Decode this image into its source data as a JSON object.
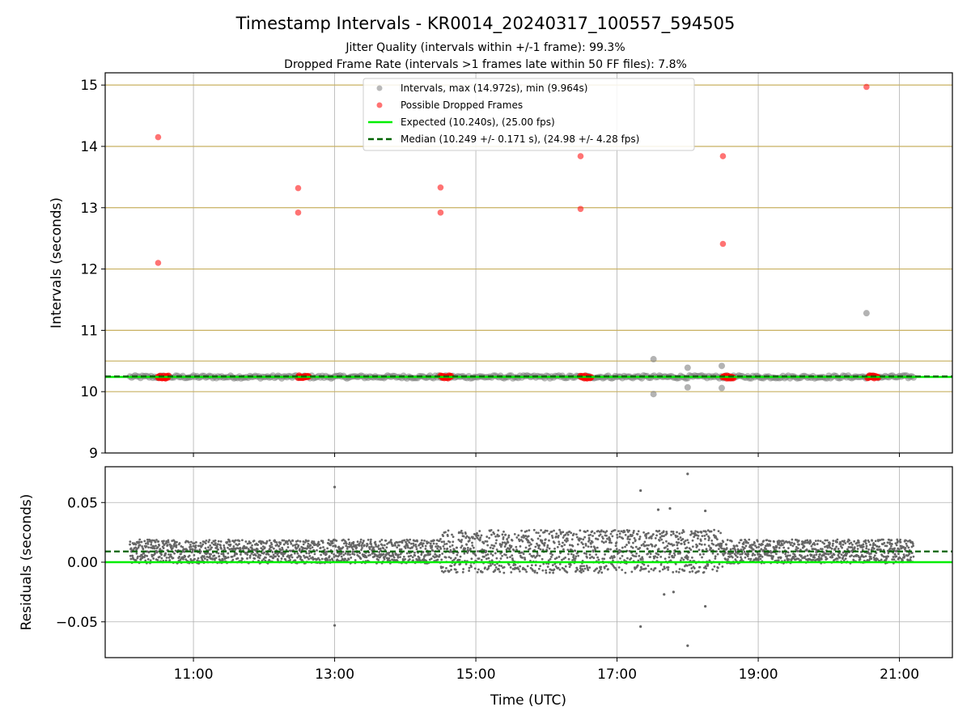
{
  "chart_data": [
    {
      "type": "scatter",
      "title": "Timestamp Intervals - KR0014_20240317_100557_594505",
      "subtitle_1": "Jitter Quality (intervals within +/-1 frame): 99.3%",
      "subtitle_2": "Dropped Frame Rate (intervals >1 frames late within 50 FF files): 7.8%",
      "xlabel": "",
      "ylabel": "Intervals (seconds)",
      "xlim": [
        "09:45",
        "21:45"
      ],
      "ylim": [
        9,
        15.2
      ],
      "yticks": [
        "9",
        "10",
        "11",
        "12",
        "13",
        "14",
        "15"
      ],
      "legend_position": "upper center",
      "grid": true,
      "horizontal_reference_lines": [
        10.0,
        10.5,
        11.0,
        12.0,
        13.0,
        14.0,
        15.0
      ],
      "legend": [
        {
          "label": "Intervals, max (14.972s), min (9.964s)",
          "marker": "circle",
          "color": "#808080"
        },
        {
          "label": "Possible Dropped Frames",
          "marker": "circle",
          "color": "#ff0000"
        },
        {
          "label": "Expected (10.240s), (25.00 fps)",
          "marker": "line",
          "color": "#00ee00"
        },
        {
          "label": "Median (10.249 +/- 0.171 s), (24.98 +/- 4.28 fps)",
          "marker": "dashed",
          "color": "#006400"
        }
      ],
      "series": [
        {
          "name": "Intervals, max (14.972s), min (9.964s)",
          "band": {
            "x_start": "10:06",
            "x_end": "21:12",
            "y": 10.24
          },
          "outliers": [
            {
              "x": "17:31",
              "y": 10.53
            },
            {
              "x": "17:31",
              "y": 9.96
            },
            {
              "x": "18:00",
              "y": 10.39
            },
            {
              "x": "18:00",
              "y": 10.07
            },
            {
              "x": "18:29",
              "y": 10.42
            },
            {
              "x": "18:29",
              "y": 10.06
            },
            {
              "x": "20:32",
              "y": 11.28
            }
          ]
        },
        {
          "name": "Possible Dropped Frames",
          "clusters": [
            {
              "x_start": "10:30",
              "x_end": "10:39",
              "y": 10.24
            },
            {
              "x_start": "12:29",
              "x_end": "12:38",
              "y": 10.24
            },
            {
              "x_start": "14:30",
              "x_end": "14:39",
              "y": 10.24
            },
            {
              "x_start": "16:29",
              "x_end": "16:38",
              "y": 10.24
            },
            {
              "x_start": "18:30",
              "x_end": "18:39",
              "y": 10.24
            },
            {
              "x_start": "20:33",
              "x_end": "20:42",
              "y": 10.24
            }
          ],
          "points": [
            {
              "x": "10:30",
              "y": 14.15
            },
            {
              "x": "10:30",
              "y": 12.1
            },
            {
              "x": "12:29",
              "y": 13.32
            },
            {
              "x": "12:29",
              "y": 12.92
            },
            {
              "x": "14:30",
              "y": 13.33
            },
            {
              "x": "14:30",
              "y": 12.92
            },
            {
              "x": "16:29",
              "y": 13.84
            },
            {
              "x": "16:29",
              "y": 12.98
            },
            {
              "x": "18:30",
              "y": 13.84
            },
            {
              "x": "18:30",
              "y": 12.41
            },
            {
              "x": "20:32",
              "y": 14.97
            }
          ]
        },
        {
          "name": "Expected (10.240s), (25.00 fps)",
          "y": 10.24
        },
        {
          "name": "Median (10.249 +/- 0.171 s), (24.98 +/- 4.28 fps)",
          "y": 10.249
        }
      ]
    },
    {
      "type": "scatter",
      "xlabel": "Time (UTC)",
      "ylabel": "Residuals (seconds)",
      "xlim": [
        "09:45",
        "21:45"
      ],
      "ylim": [
        -0.08,
        0.08
      ],
      "yticks": [
        "−0.05",
        "0.00",
        "0.05"
      ],
      "xticks": [
        "11:00",
        "13:00",
        "15:00",
        "17:00",
        "19:00",
        "21:00"
      ],
      "grid": true,
      "series": [
        {
          "name": "",
          "band": {
            "x_start": "10:06",
            "x_end": "21:12",
            "center": 0.009,
            "spread": 0.01
          },
          "outliers": [
            {
              "x": "13:00",
              "y": 0.063
            },
            {
              "x": "13:00",
              "y": -0.053
            },
            {
              "x": "17:20",
              "y": 0.06
            },
            {
              "x": "17:20",
              "y": -0.054
            },
            {
              "x": "18:00",
              "y": 0.074
            },
            {
              "x": "18:00",
              "y": -0.07
            },
            {
              "x": "18:15",
              "y": 0.043
            },
            {
              "x": "18:15",
              "y": -0.037
            },
            {
              "x": "17:35",
              "y": 0.044
            },
            {
              "x": "17:45",
              "y": 0.045
            },
            {
              "x": "17:40",
              "y": -0.027
            },
            {
              "x": "17:48",
              "y": -0.025
            }
          ]
        },
        {
          "name": "Expected",
          "y": 0.0
        },
        {
          "name": "Median",
          "y": 0.009
        }
      ]
    }
  ],
  "colors": {
    "interval_gray": "#808080",
    "dropped_red": "#ff0000",
    "expected_green": "#00ee00",
    "median_darkgreen": "#006400",
    "reference_gold": "#c8b060",
    "grid": "#b0b0b0"
  }
}
